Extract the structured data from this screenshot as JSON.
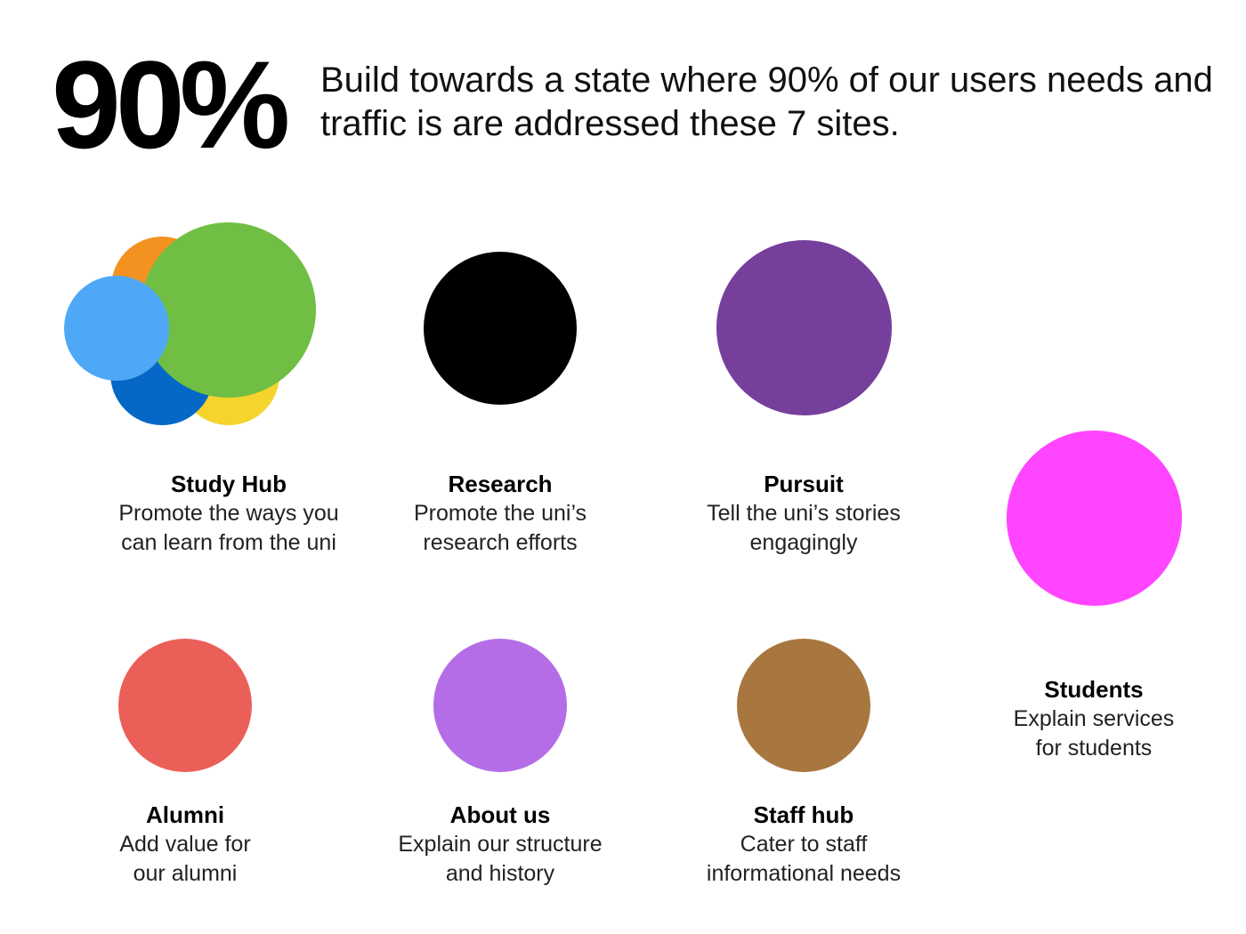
{
  "header": {
    "big_stat": "90%",
    "statement": "Build towards a state where 90% of our users needs and traffic is are addressed these 7 sites."
  },
  "sites": [
    {
      "key": "study_hub",
      "name": "Study Hub",
      "description": "Promote the ways you\ncan learn from the uni",
      "colors": [
        "#F39220",
        "#F5D42E",
        "#0568C6",
        "#70BF44",
        "#4FA8F7"
      ]
    },
    {
      "key": "research",
      "name": "Research",
      "description": "Promote the uni’s\nresearch efforts",
      "color": "#000000"
    },
    {
      "key": "pursuit",
      "name": "Pursuit",
      "description": "Tell the uni’s stories\nengagingly",
      "color": "#773F9C"
    },
    {
      "key": "students",
      "name": "Students",
      "description": "Explain services\nfor students",
      "color": "#FF45FF"
    },
    {
      "key": "alumni",
      "name": "Alumni",
      "description": "Add value for\nour alumni",
      "color": "#EB5F59"
    },
    {
      "key": "about_us",
      "name": "About us",
      "description": "Explain our structure\nand history",
      "color": "#B46DE6"
    },
    {
      "key": "staff_hub",
      "name": "Staff hub",
      "description": "Cater to staff\ninformational needs",
      "color": "#A8773F"
    }
  ]
}
